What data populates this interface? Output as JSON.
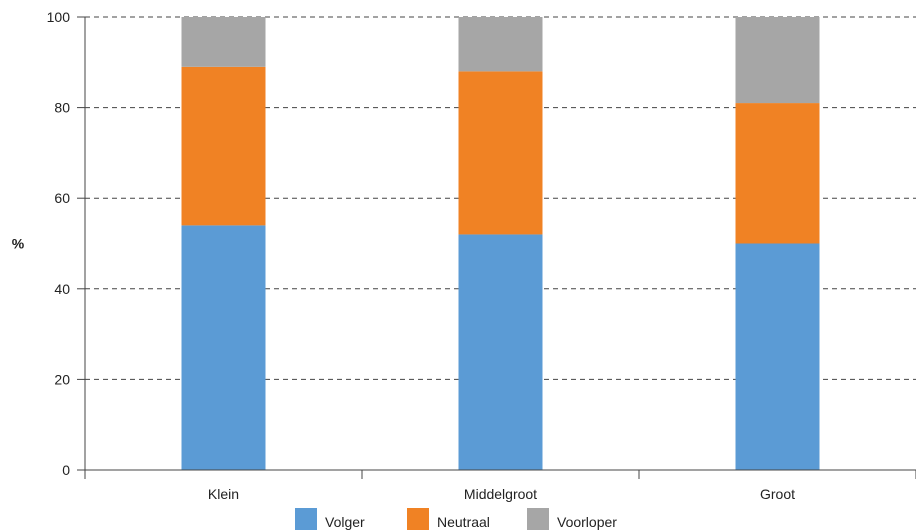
{
  "chart_data": {
    "type": "bar",
    "stacked": true,
    "title": "",
    "xlabel": "",
    "ylabel": "%",
    "ylim": [
      0,
      100
    ],
    "yticks": [
      0,
      20,
      40,
      60,
      80,
      100
    ],
    "grid": "horizontal dashed",
    "legend_position": "bottom",
    "categories": [
      "Klein",
      "Middelgroot",
      "Groot"
    ],
    "series": [
      {
        "name": "Volger",
        "values": [
          54,
          52,
          50
        ],
        "color": "#5b9bd5"
      },
      {
        "name": "Neutraal",
        "values": [
          35,
          36,
          31
        ],
        "color": "#f08224"
      },
      {
        "name": "Voorloper",
        "values": [
          11,
          12,
          19
        ],
        "color": "#a6a6a6"
      }
    ]
  }
}
